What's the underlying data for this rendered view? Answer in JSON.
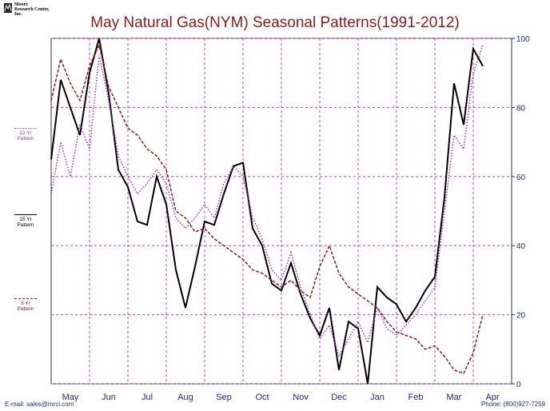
{
  "header": {
    "logo_line1": "Moore",
    "logo_line2": "Research Center, Inc.",
    "title": "May Natural Gas(NYM) Seasonal Patterns(1991-2012)"
  },
  "footer": {
    "email": "E-mail: sales@mrci.com",
    "phone": "Phone: (800)927-7259"
  },
  "legend": [
    {
      "label_line1": "22 Yr",
      "label_line2": "Pattern",
      "color": "#9b30c8"
    },
    {
      "label_line1": "15 Yr",
      "label_line2": "Pattern",
      "color": "#000000"
    },
    {
      "label_line1": "5 Yr",
      "label_line2": "Pattern",
      "color": "#8b1a1a"
    }
  ],
  "colors": {
    "title": "#8b1a1a",
    "grid": "#c040c0",
    "axis_text": "#1a2a7a",
    "series_15yr": "#000000",
    "series_22yr": "#9b30c8",
    "series_5yr": "#8b1a1a"
  },
  "chart_data": {
    "type": "line",
    "title": "May Natural Gas(NYM) Seasonal Patterns(1991-2012)",
    "categories": [
      "May",
      "Jun",
      "Jul",
      "Aug",
      "Sep",
      "Oct",
      "Nov",
      "Dec",
      "Jan",
      "Feb",
      "Mar",
      "Apr"
    ],
    "y_ticks": [
      0,
      20,
      40,
      60,
      80,
      100
    ],
    "ylim": [
      0,
      100
    ],
    "y_axis_side": "right",
    "grid": true,
    "x": [
      0,
      0.25,
      0.5,
      0.75,
      1,
      1.25,
      1.5,
      1.75,
      2,
      2.25,
      2.5,
      2.75,
      3,
      3.25,
      3.5,
      3.75,
      4,
      4.25,
      4.5,
      4.75,
      5,
      5.25,
      5.5,
      5.75,
      6,
      6.25,
      6.5,
      6.75,
      7,
      7.25,
      7.5,
      7.75,
      8,
      8.25,
      8.5,
      8.75,
      9,
      9.25,
      9.5,
      9.75,
      10,
      10.25,
      10.5,
      10.75,
      11,
      11.25
    ],
    "series": [
      {
        "name": "15 Yr Pattern",
        "style": "solid",
        "color": "#000000",
        "values": [
          65,
          88,
          80,
          72,
          90,
          100,
          84,
          62,
          57,
          47,
          46,
          60,
          52,
          33,
          22,
          34,
          47,
          46,
          55,
          63,
          64,
          45,
          40,
          29,
          27,
          35,
          26,
          19,
          14,
          22,
          4,
          18,
          16,
          0,
          28,
          25,
          23,
          18,
          22,
          27,
          31,
          54,
          87,
          75,
          97,
          92
        ]
      },
      {
        "name": "22 Yr Pattern",
        "style": "dotted",
        "color": "#9b30c8",
        "values": [
          55,
          70,
          60,
          75,
          68,
          95,
          82,
          66,
          60,
          55,
          58,
          62,
          58,
          48,
          45,
          48,
          52,
          48,
          58,
          63,
          60,
          48,
          42,
          33,
          30,
          38,
          28,
          20,
          13,
          17,
          8,
          13,
          18,
          12,
          22,
          16,
          14,
          17,
          20,
          24,
          28,
          50,
          72,
          68,
          90,
          98
        ]
      },
      {
        "name": "5 Yr Pattern",
        "style": "dashed",
        "color": "#8b1a1a",
        "values": [
          82,
          94,
          87,
          82,
          92,
          98,
          86,
          80,
          74,
          72,
          68,
          66,
          62,
          50,
          48,
          44,
          45,
          42,
          40,
          38,
          36,
          33,
          32,
          30,
          28,
          30,
          27,
          25,
          34,
          40,
          32,
          28,
          26,
          24,
          22,
          18,
          15,
          14,
          13,
          10,
          11,
          8,
          4,
          3,
          9,
          20
        ]
      }
    ]
  }
}
